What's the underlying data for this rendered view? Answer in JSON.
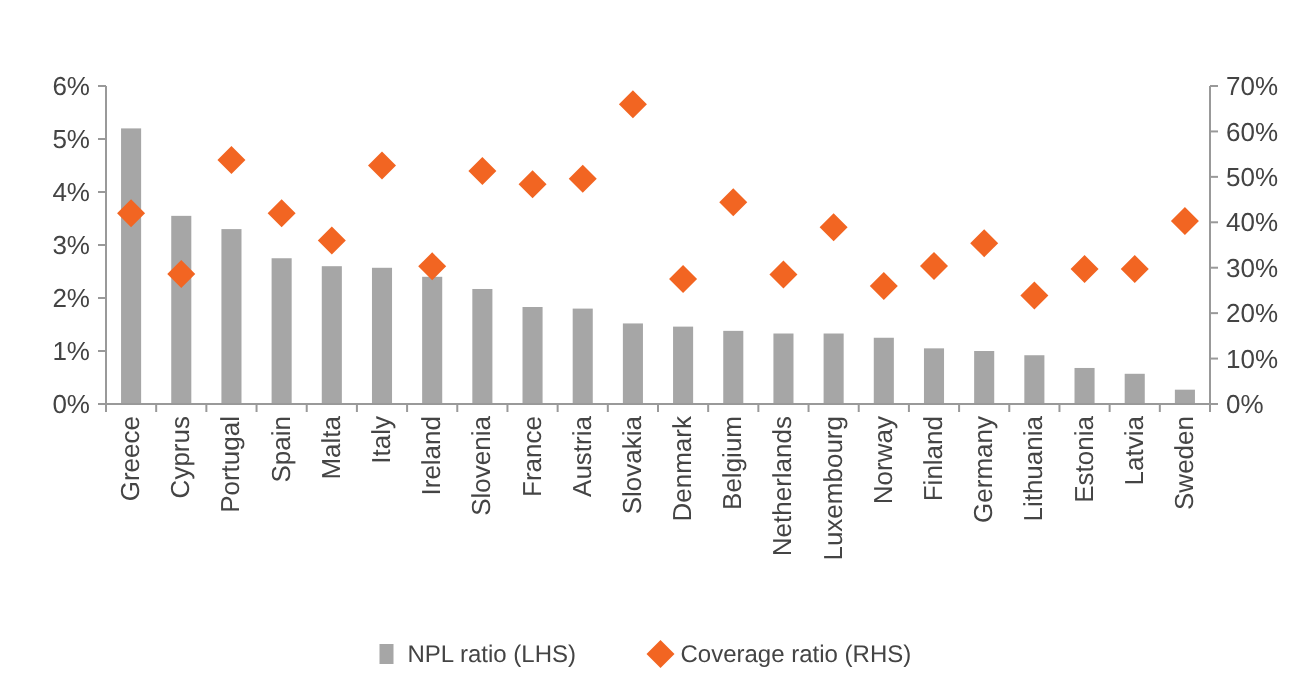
{
  "chart_data": {
    "type": "bar",
    "categories": [
      "Greece",
      "Cyprus",
      "Portugal",
      "Spain",
      "Malta",
      "Italy",
      "Ireland",
      "Slovenia",
      "France",
      "Austria",
      "Slovakia",
      "Denmark",
      "Belgium",
      "Netherlands",
      "Luxembourg",
      "Norway",
      "Finland",
      "Germany",
      "Lithuania",
      "Estonia",
      "Latvia",
      "Sweden"
    ],
    "series": [
      {
        "name": "NPL ratio (LHS)",
        "color": "#a6a6a6",
        "values": [
          5.2,
          3.55,
          3.3,
          2.75,
          2.6,
          2.57,
          2.4,
          2.17,
          1.83,
          1.8,
          1.52,
          1.46,
          1.38,
          1.33,
          1.33,
          1.25,
          1.05,
          1.0,
          0.92,
          0.68,
          0.57,
          0.27
        ]
      },
      {
        "name": "Coverage ratio (RHS)",
        "type": "scatter",
        "axis": "y2",
        "marker": "diamond",
        "color": "#f26522",
        "values": [
          42,
          28.6,
          53.7,
          42,
          36,
          52.5,
          30.3,
          51.3,
          48.4,
          49.6,
          66,
          27.5,
          44.4,
          28.5,
          38.9,
          26,
          30.4,
          35.4,
          23.9,
          29.7,
          29.7,
          40.3
        ]
      }
    ],
    "ylim": [
      0,
      6
    ],
    "yticks": [
      {
        "value": 0,
        "label": "0%"
      },
      {
        "value": 1,
        "label": "1%"
      },
      {
        "value": 2,
        "label": "2%"
      },
      {
        "value": 3,
        "label": "3%"
      },
      {
        "value": 4,
        "label": "4%"
      },
      {
        "value": 5,
        "label": "5%"
      },
      {
        "value": 6,
        "label": "6%"
      }
    ],
    "y2lim": [
      0,
      70
    ],
    "y2ticks": [
      {
        "value": 0,
        "label": "0%"
      },
      {
        "value": 10,
        "label": "10%"
      },
      {
        "value": 20,
        "label": "20%"
      },
      {
        "value": 30,
        "label": "30%"
      },
      {
        "value": 40,
        "label": "40%"
      },
      {
        "value": 50,
        "label": "50%"
      },
      {
        "value": 60,
        "label": "60%"
      },
      {
        "value": 70,
        "label": "70%"
      }
    ],
    "grid": false,
    "legend": "bottom"
  }
}
